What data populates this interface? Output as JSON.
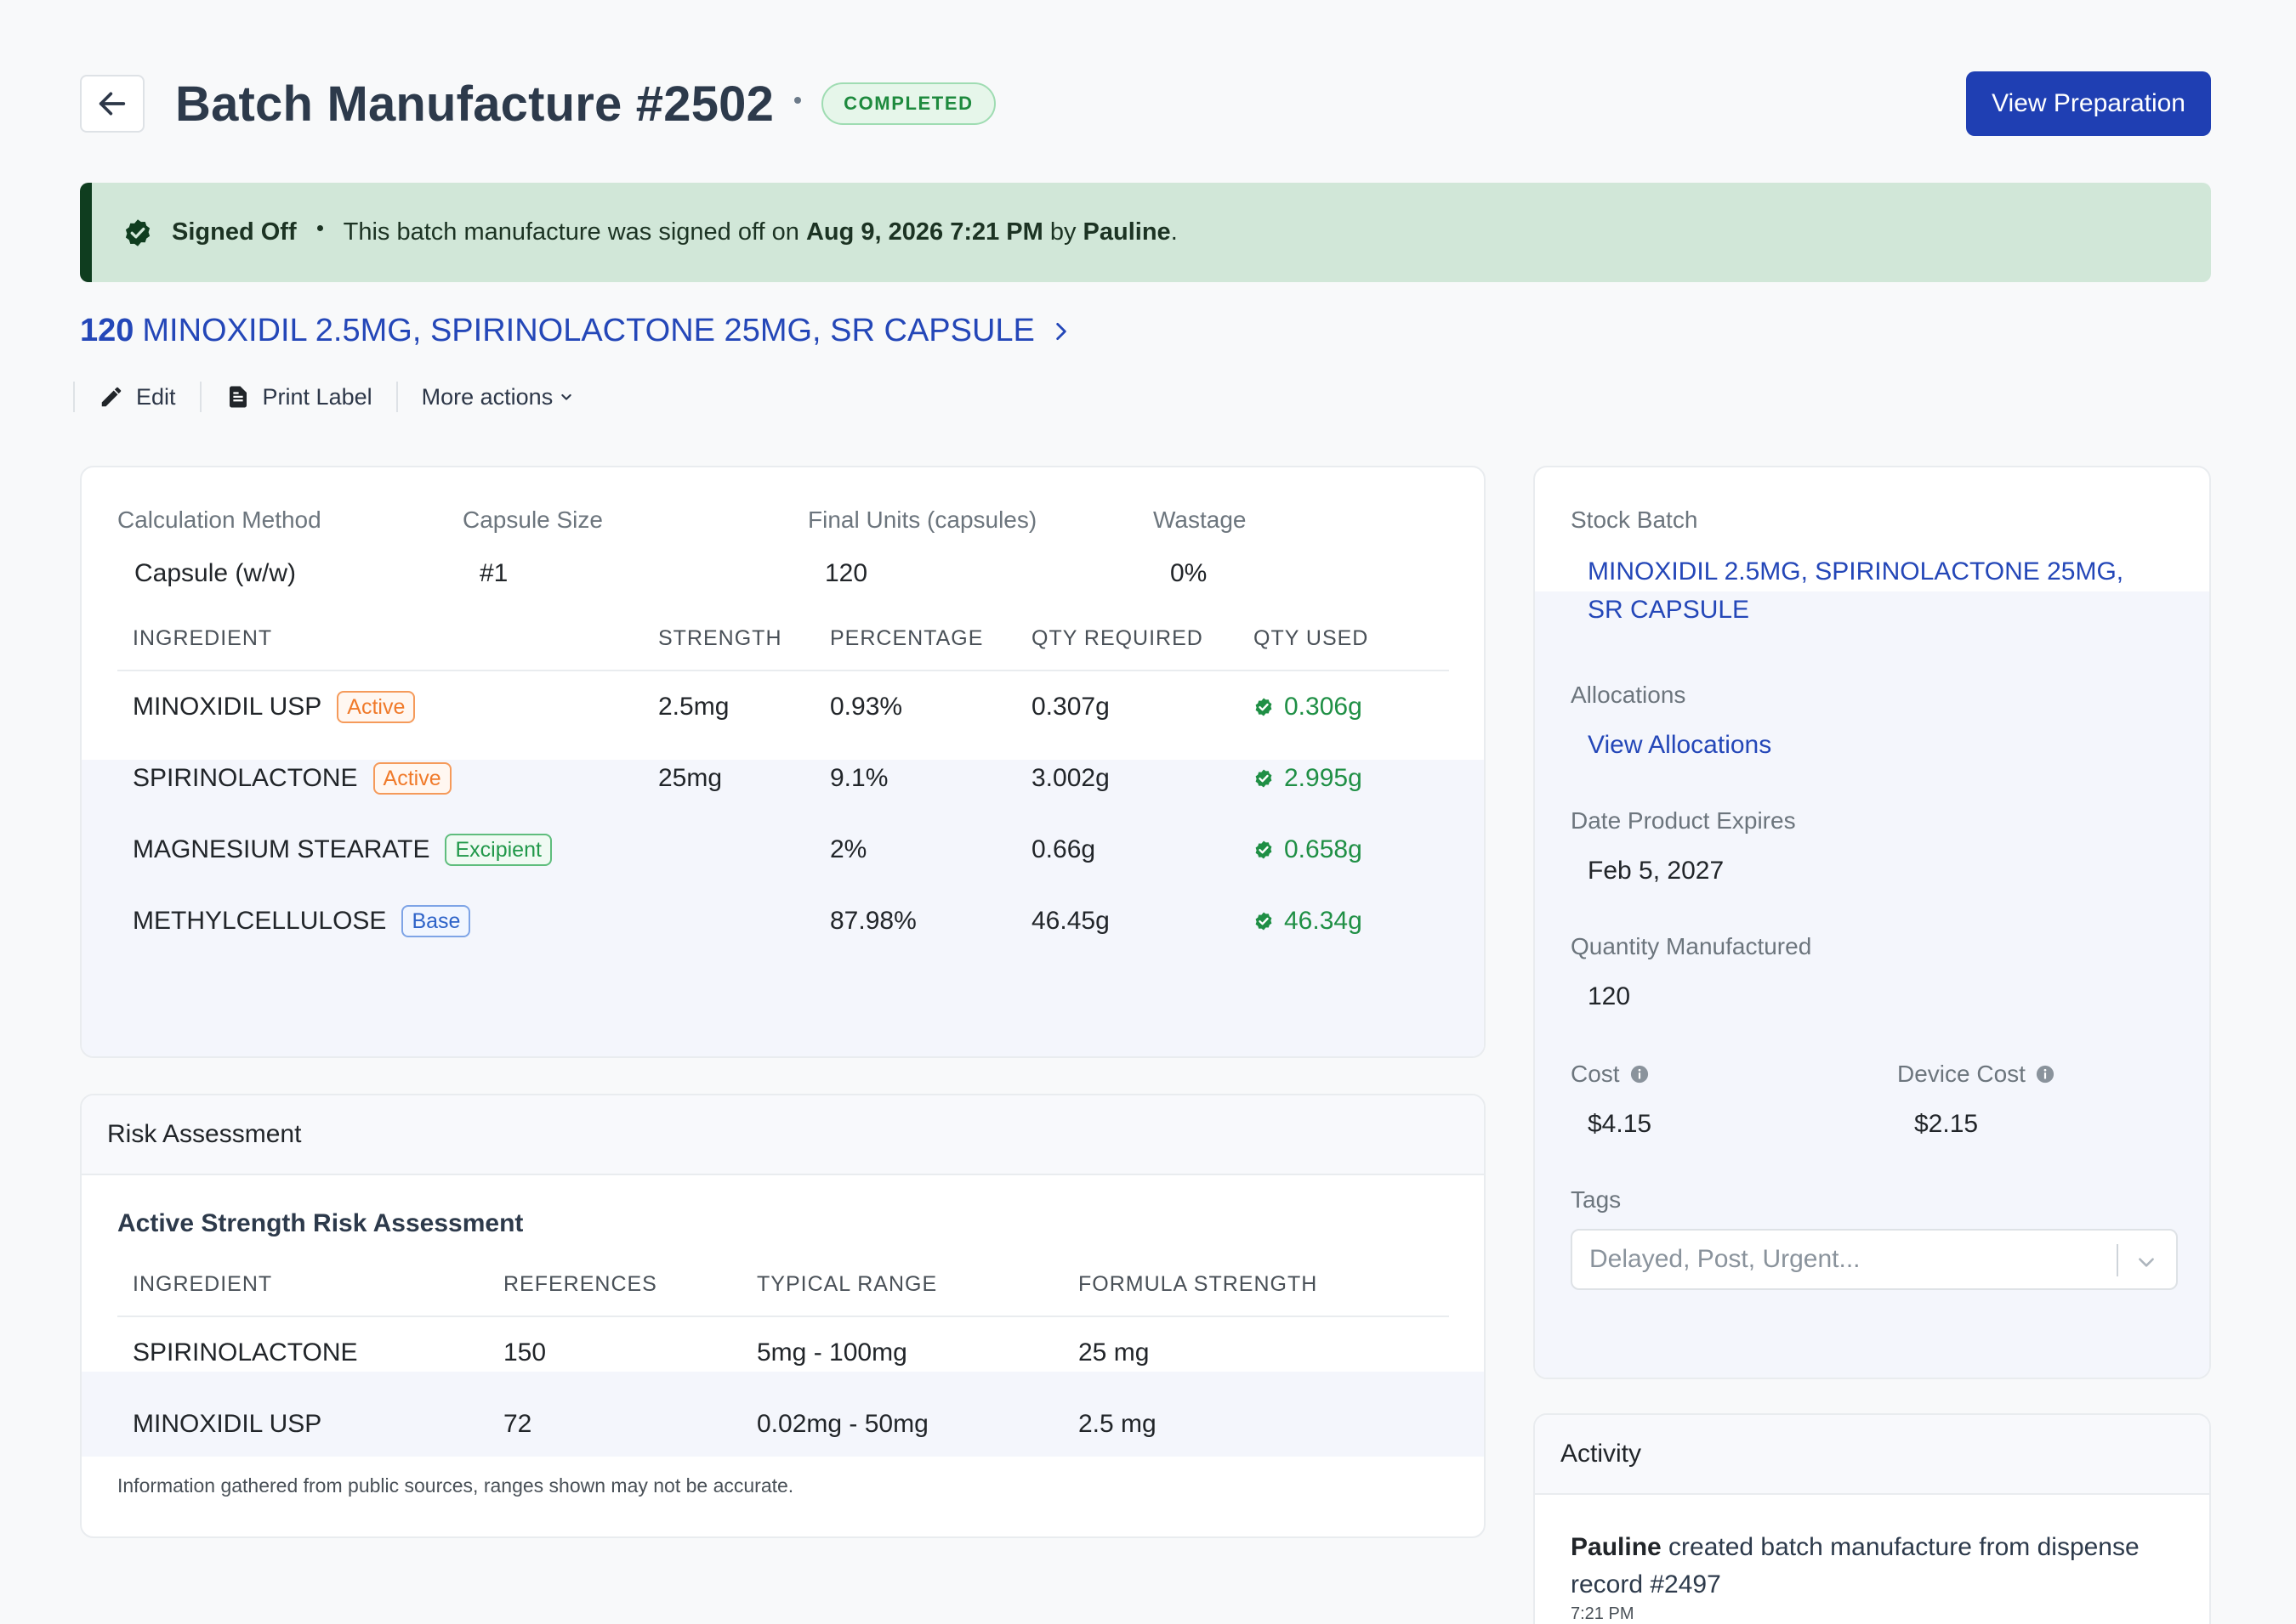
{
  "header": {
    "title": "Batch Manufacture #2502",
    "status": "COMPLETED",
    "primary_action": "View Preparation"
  },
  "banner": {
    "label": "Signed Off",
    "text_before": "This batch manufacture was signed off on ",
    "date": "Aug 9, 2026 7:21 PM",
    "text_by": " by ",
    "user": "Pauline",
    "text_end": "."
  },
  "product": {
    "quantity": "120",
    "name": "MINOXIDIL 2.5MG, SPIRINOLACTONE 25MG, SR CAPSULE"
  },
  "actions": {
    "edit": "Edit",
    "print_label": "Print Label",
    "more": "More actions"
  },
  "summary": {
    "fields": [
      {
        "label": "Calculation Method",
        "value": "Capsule (w/w)"
      },
      {
        "label": "Capsule Size",
        "value": "#1"
      },
      {
        "label": "Final Units (capsules)",
        "value": "120"
      },
      {
        "label": "Wastage",
        "value": "0%"
      }
    ]
  },
  "ingredients": {
    "headers": [
      "INGREDIENT",
      "STRENGTH",
      "PERCENTAGE",
      "QTY REQUIRED",
      "QTY USED"
    ],
    "rows": [
      {
        "name": "MINOXIDIL USP",
        "tag": "Active",
        "strength": "2.5mg",
        "percentage": "0.93%",
        "qty_required": "0.307g",
        "qty_used": "0.306g"
      },
      {
        "name": "SPIRINOLACTONE",
        "tag": "Active",
        "strength": "25mg",
        "percentage": "9.1%",
        "qty_required": "3.002g",
        "qty_used": "2.995g"
      },
      {
        "name": "MAGNESIUM STEARATE",
        "tag": "Excipient",
        "strength": "",
        "percentage": "2%",
        "qty_required": "0.66g",
        "qty_used": "0.658g"
      },
      {
        "name": "METHYLCELLULOSE",
        "tag": "Base",
        "strength": "",
        "percentage": "87.98%",
        "qty_required": "46.45g",
        "qty_used": "46.34g"
      }
    ]
  },
  "risk": {
    "title": "Risk Assessment",
    "subtitle": "Active Strength Risk Assessment",
    "headers": [
      "INGREDIENT",
      "REFERENCES",
      "TYPICAL RANGE",
      "FORMULA STRENGTH"
    ],
    "rows": [
      {
        "name": "SPIRINOLACTONE",
        "references": "150",
        "range": "5mg - 100mg",
        "strength": "25 mg"
      },
      {
        "name": "MINOXIDIL USP",
        "references": "72",
        "range": "0.02mg - 50mg",
        "strength": "2.5 mg"
      }
    ],
    "note": "Information gathered from public sources, ranges shown may not be accurate."
  },
  "side": {
    "stock_batch_label": "Stock Batch",
    "stock_batch_line1": "MINOXIDIL 2.5MG, SPIRINOLACTONE 25MG,",
    "stock_batch_line2": "SR CAPSULE",
    "allocations_label": "Allocations",
    "allocations_link": "View Allocations",
    "expires_label": "Date Product Expires",
    "expires_value": "Feb 5, 2027",
    "quantity_label": "Quantity Manufactured",
    "quantity_value": "120",
    "cost_label": "Cost",
    "cost_value": "$4.15",
    "device_cost_label": "Device Cost",
    "device_cost_value": "$2.15",
    "tags_label": "Tags",
    "tags_placeholder": "Delayed, Post, Urgent..."
  },
  "activity": {
    "title": "Activity",
    "user": "Pauline",
    "text": " created batch manufacture from dispense record #2497",
    "time": "7:21 PM"
  },
  "colors": {
    "primary": "#1f3fb3",
    "link": "#2447b8",
    "success": "#1f8f45",
    "banner_bg": "#d1e7d8",
    "banner_accent": "#0f3d1f"
  }
}
